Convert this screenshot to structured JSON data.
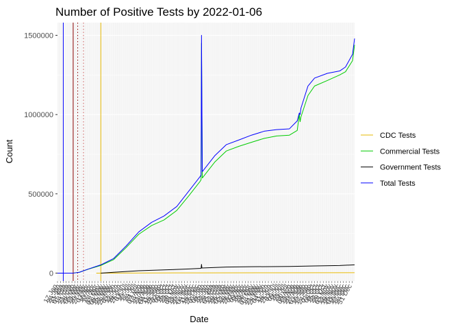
{
  "chart_data": {
    "type": "line",
    "title": "Number of Positive Tests by  2022-01-06",
    "xlabel": "Date",
    "ylabel": "Count",
    "x_range": [
      "2020-01-17",
      "2022-01-06"
    ],
    "ylim": [
      -50000,
      1580000
    ],
    "yticks": [
      {
        "value": 0,
        "label": "0"
      },
      {
        "value": 500000,
        "label": "500000"
      },
      {
        "value": 1000000,
        "label": "1000000"
      },
      {
        "value": 1500000,
        "label": "1500000"
      }
    ],
    "grid": true,
    "legend_position": "right",
    "vlines": [
      {
        "x": "2020-01-31",
        "color": "#0000ff",
        "style": "solid"
      },
      {
        "x": "2020-02-24",
        "color": "#8b0000",
        "style": "solid"
      },
      {
        "x": "2020-03-06",
        "color": "#8b0000",
        "style": "dotted"
      },
      {
        "x": "2020-03-20",
        "color": "#cd5c5c",
        "style": "dotted"
      },
      {
        "x": "2020-05-01",
        "color": "#e6b800",
        "style": "solid"
      }
    ],
    "series": [
      {
        "name": "CDC Tests",
        "color": "#e6b800",
        "points": [
          [
            "2020-04-20",
            0
          ],
          [
            "2020-07-01",
            500
          ],
          [
            "2021-01-01",
            1500
          ],
          [
            "2021-07-01",
            2000
          ],
          [
            "2022-01-06",
            2500
          ]
        ]
      },
      {
        "name": "Commercial Tests",
        "color": "#00cc00",
        "points": [
          [
            "2020-01-17",
            0
          ],
          [
            "2020-02-24",
            0
          ],
          [
            "2020-03-10",
            5000
          ],
          [
            "2020-04-01",
            25000
          ],
          [
            "2020-05-01",
            48000
          ],
          [
            "2020-06-01",
            85000
          ],
          [
            "2020-07-01",
            160000
          ],
          [
            "2020-08-01",
            245000
          ],
          [
            "2020-09-01",
            300000
          ],
          [
            "2020-10-01",
            335000
          ],
          [
            "2020-11-01",
            395000
          ],
          [
            "2020-12-01",
            490000
          ],
          [
            "2020-12-28",
            580000
          ],
          [
            "2020-12-30",
            590000
          ],
          [
            "2020-12-31",
            1450000
          ],
          [
            "2021-01-01",
            1020000
          ],
          [
            "2021-01-02",
            600000
          ],
          [
            "2021-02-01",
            700000
          ],
          [
            "2021-03-01",
            770000
          ],
          [
            "2021-04-01",
            800000
          ],
          [
            "2021-05-01",
            825000
          ],
          [
            "2021-06-01",
            850000
          ],
          [
            "2021-07-01",
            865000
          ],
          [
            "2021-08-01",
            870000
          ],
          [
            "2021-08-20",
            900000
          ],
          [
            "2021-08-25",
            1000000
          ],
          [
            "2021-08-27",
            955000
          ],
          [
            "2021-08-29",
            985000
          ],
          [
            "2021-09-15",
            1120000
          ],
          [
            "2021-10-01",
            1180000
          ],
          [
            "2021-11-01",
            1215000
          ],
          [
            "2021-12-01",
            1250000
          ],
          [
            "2021-12-15",
            1270000
          ],
          [
            "2022-01-01",
            1340000
          ],
          [
            "2022-01-06",
            1440000
          ]
        ]
      },
      {
        "name": "Government Tests",
        "color": "#000000",
        "points": [
          [
            "2020-05-01",
            0
          ],
          [
            "2020-06-01",
            5000
          ],
          [
            "2020-08-01",
            15000
          ],
          [
            "2020-10-01",
            20000
          ],
          [
            "2020-12-01",
            26000
          ],
          [
            "2020-12-30",
            30000
          ],
          [
            "2020-12-31",
            55000
          ],
          [
            "2021-01-01",
            32000
          ],
          [
            "2021-03-01",
            38000
          ],
          [
            "2021-05-01",
            40000
          ],
          [
            "2021-08-01",
            42000
          ],
          [
            "2021-10-01",
            45000
          ],
          [
            "2021-12-01",
            48000
          ],
          [
            "2022-01-06",
            52000
          ]
        ]
      },
      {
        "name": "Total Tests",
        "color": "#0000ff",
        "points": [
          [
            "2020-01-17",
            0
          ],
          [
            "2020-02-24",
            0
          ],
          [
            "2020-03-10",
            5000
          ],
          [
            "2020-04-01",
            26000
          ],
          [
            "2020-05-01",
            52000
          ],
          [
            "2020-06-01",
            92000
          ],
          [
            "2020-07-01",
            170000
          ],
          [
            "2020-08-01",
            260000
          ],
          [
            "2020-09-01",
            320000
          ],
          [
            "2020-10-01",
            360000
          ],
          [
            "2020-11-01",
            420000
          ],
          [
            "2020-12-01",
            520000
          ],
          [
            "2020-12-28",
            610000
          ],
          [
            "2020-12-30",
            620000
          ],
          [
            "2020-12-31",
            1500000
          ],
          [
            "2021-01-01",
            1050000
          ],
          [
            "2021-01-02",
            640000
          ],
          [
            "2021-02-01",
            740000
          ],
          [
            "2021-03-01",
            810000
          ],
          [
            "2021-04-01",
            840000
          ],
          [
            "2021-05-01",
            870000
          ],
          [
            "2021-06-01",
            895000
          ],
          [
            "2021-07-01",
            905000
          ],
          [
            "2021-08-01",
            910000
          ],
          [
            "2021-08-20",
            960000
          ],
          [
            "2021-08-25",
            1010000
          ],
          [
            "2021-08-27",
            1000000
          ],
          [
            "2021-08-29",
            1040000
          ],
          [
            "2021-09-15",
            1180000
          ],
          [
            "2021-10-01",
            1230000
          ],
          [
            "2021-11-01",
            1260000
          ],
          [
            "2021-12-01",
            1275000
          ],
          [
            "2021-12-15",
            1300000
          ],
          [
            "2022-01-01",
            1380000
          ],
          [
            "2022-01-06",
            1480000
          ]
        ]
      }
    ]
  }
}
